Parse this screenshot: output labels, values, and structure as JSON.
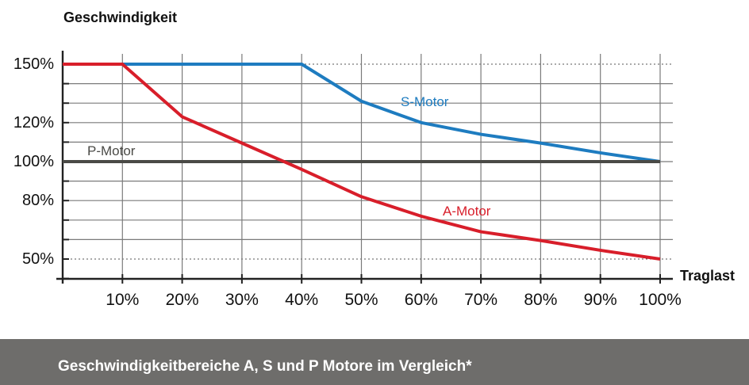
{
  "chart_data": {
    "type": "line",
    "ylabel": "Geschwindigkeit",
    "xlabel": "Traglast",
    "x": [
      0,
      10,
      20,
      30,
      40,
      50,
      60,
      70,
      80,
      90,
      100
    ],
    "x_tick_labels": [
      "10%",
      "20%",
      "30%",
      "40%",
      "50%",
      "60%",
      "70%",
      "80%",
      "90%",
      "100%"
    ],
    "y_tick_labels": [
      {
        "value": 150,
        "label": "150%"
      },
      {
        "value": 120,
        "label": "120%"
      },
      {
        "value": 100,
        "label": "100%"
      },
      {
        "value": 80,
        "label": "80%"
      },
      {
        "value": 50,
        "label": "50%"
      }
    ],
    "y_grid_values": [
      40,
      50,
      60,
      70,
      80,
      90,
      100,
      110,
      120,
      130,
      140,
      150
    ],
    "y_dotted_values": [
      50,
      150
    ],
    "xlim": [
      0,
      100
    ],
    "ylim": [
      40,
      150
    ],
    "grid": true,
    "series": [
      {
        "name": "S-Motor",
        "label": "S-Motor",
        "color": "#1e7cc0",
        "x": [
          0,
          10,
          40,
          50,
          60,
          70,
          80,
          90,
          100
        ],
        "values": [
          150,
          150,
          150,
          131,
          120,
          114,
          109.5,
          104.5,
          100
        ]
      },
      {
        "name": "P-Motor",
        "label": "P-Motor",
        "color": "#4a4a46",
        "x": [
          0,
          100
        ],
        "values": [
          100,
          100
        ]
      },
      {
        "name": "A-Motor",
        "label": "A-Motor",
        "color": "#d81e2a",
        "x": [
          0,
          10,
          20,
          30,
          40,
          50,
          60,
          70,
          80,
          90,
          100
        ],
        "values": [
          150,
          150,
          123,
          109.5,
          96,
          82,
          72,
          64,
          59.5,
          54.5,
          50
        ]
      }
    ]
  },
  "footer": {
    "caption": "Geschwindigkeitbereiche A, S und P Motore im Vergleich*"
  }
}
